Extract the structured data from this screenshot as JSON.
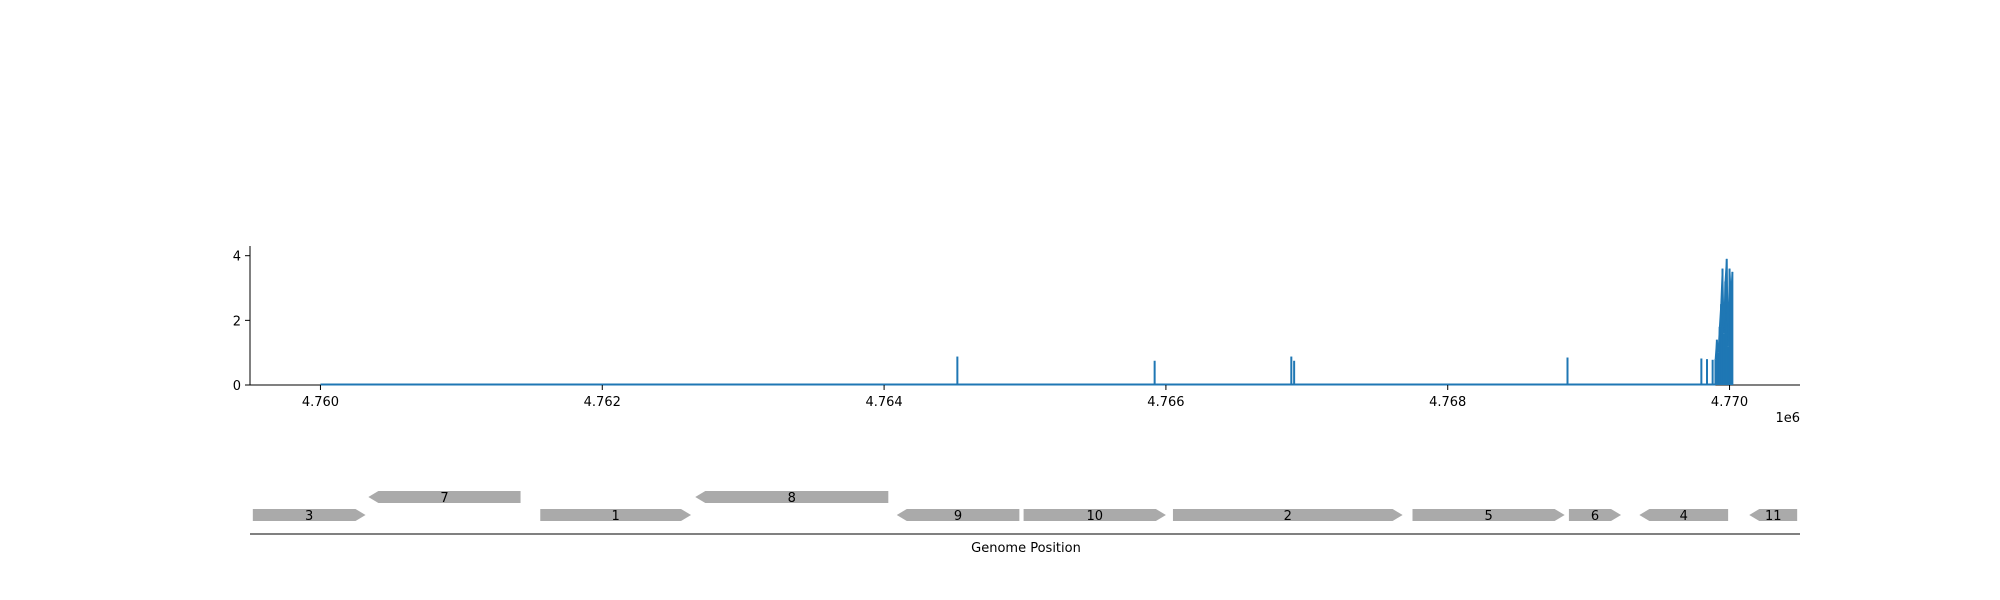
{
  "chart_data": [
    {
      "type": "line",
      "title": "",
      "xlabel": "",
      "ylabel": "",
      "x_offset_label": "1e6",
      "xlim": [
        4759500,
        4770500
      ],
      "ylim": [
        0,
        4.3
      ],
      "x_ticks": [
        4760000,
        4762000,
        4764000,
        4766000,
        4768000,
        4770000
      ],
      "x_tick_labels": [
        "4.760",
        "4.762",
        "4.764",
        "4.766",
        "4.768",
        "4.770"
      ],
      "y_ticks": [
        0,
        2,
        4
      ],
      "y_tick_labels": [
        "0",
        "2",
        "4"
      ],
      "grid": false,
      "color": "#1f77b4",
      "baseline": {
        "x_start": 4760000,
        "x_end": 4769900,
        "y": 0
      },
      "spikes": [
        {
          "x": 4764520,
          "y": 0.88
        },
        {
          "x": 4765920,
          "y": 0.75
        },
        {
          "x": 4766890,
          "y": 0.88
        },
        {
          "x": 4766910,
          "y": 0.75
        },
        {
          "x": 4768850,
          "y": 0.85
        },
        {
          "x": 4769800,
          "y": 0.82
        },
        {
          "x": 4769840,
          "y": 0.8
        },
        {
          "x": 4769880,
          "y": 0.78
        }
      ],
      "dense_region": {
        "x": [
          4769900,
          4769910,
          4769920,
          4769930,
          4769940,
          4769950,
          4769960,
          4769970,
          4769980,
          4769990,
          4770000,
          4770010,
          4770020
        ],
        "y": [
          0.8,
          1.4,
          1.0,
          1.8,
          2.5,
          3.6,
          1.6,
          3.2,
          3.9,
          1.2,
          3.6,
          2.8,
          3.5
        ]
      }
    },
    {
      "type": "gene_track",
      "xlabel": "Genome Position",
      "xlim": [
        4759500,
        4770500
      ],
      "color": "#aaaaaa",
      "genes": [
        {
          "label": "3",
          "start": 4759520,
          "end": 4760320,
          "strand": "+",
          "row": 0
        },
        {
          "label": "7",
          "start": 4760340,
          "end": 4761420,
          "strand": "-",
          "row": 1
        },
        {
          "label": "1",
          "start": 4761560,
          "end": 4762630,
          "strand": "+",
          "row": 0
        },
        {
          "label": "8",
          "start": 4762660,
          "end": 4764030,
          "strand": "-",
          "row": 1
        },
        {
          "label": "9",
          "start": 4764090,
          "end": 4764960,
          "strand": "-",
          "row": 0
        },
        {
          "label": "10",
          "start": 4764990,
          "end": 4766000,
          "strand": "+",
          "row": 0
        },
        {
          "label": "2",
          "start": 4766050,
          "end": 4767680,
          "strand": "+",
          "row": 0
        },
        {
          "label": "5",
          "start": 4767750,
          "end": 4768830,
          "strand": "+",
          "row": 0
        },
        {
          "label": "6",
          "start": 4768860,
          "end": 4769230,
          "strand": "+",
          "row": 0
        },
        {
          "label": "4",
          "start": 4769360,
          "end": 4769990,
          "strand": "-",
          "row": 0
        },
        {
          "label": "11",
          "start": 4770140,
          "end": 4770480,
          "strand": "-",
          "row": 0
        }
      ]
    }
  ]
}
